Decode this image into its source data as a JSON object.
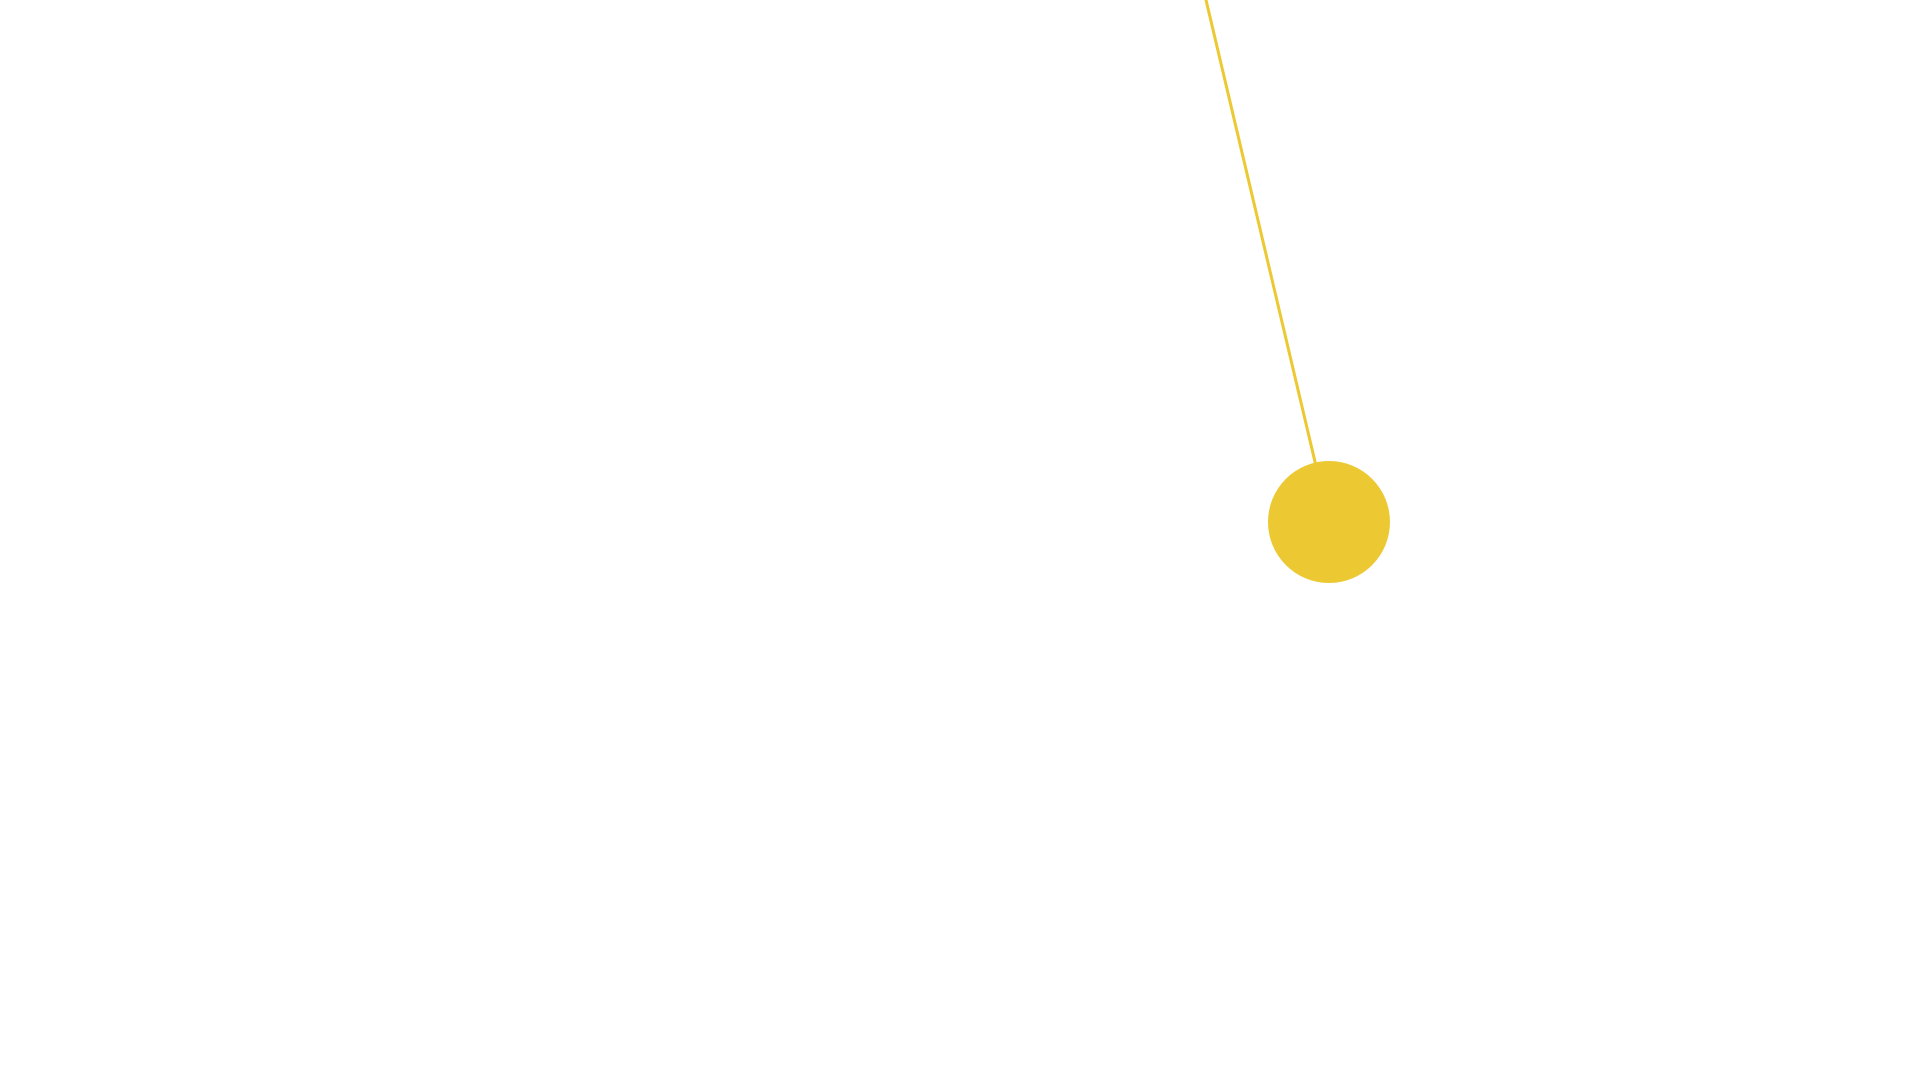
{
  "scene": {
    "background_color": "#ffffff",
    "pendulum": {
      "color": "#ecc933",
      "string_color": "#ecc933",
      "bob_icon": "pendulum-bob-circle"
    }
  }
}
